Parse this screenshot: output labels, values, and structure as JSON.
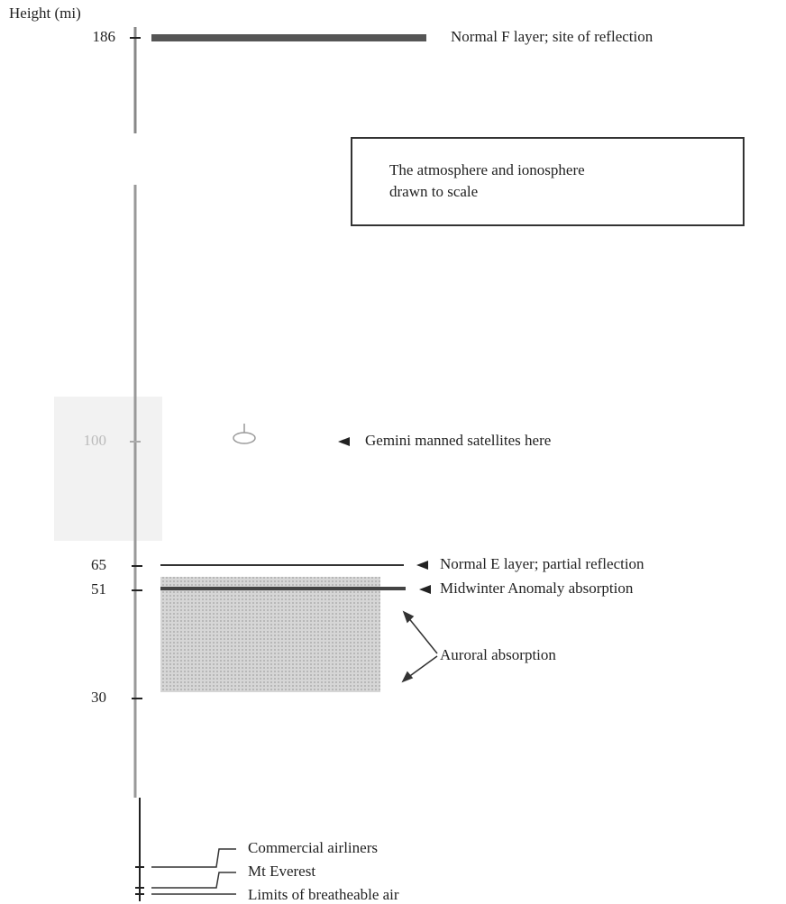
{
  "axis": {
    "title": "Height (mi)",
    "ticks": [
      "186",
      "100",
      "65",
      "51",
      "30"
    ]
  },
  "box": {
    "lines": [
      "The atmosphere and ionosphere",
      "drawn to scale"
    ]
  },
  "labels": {
    "f_layer": "Normal F layer; site of reflection",
    "gemini": "Gemini manned satellites here",
    "e_layer": "Normal E layer; partial reflection",
    "midwinter": "Midwinter Anomaly absorption",
    "auroral": "Auroral absorption",
    "airliners": "Commercial airliners",
    "everest": "Mt Everest",
    "breathable": "Limits of breatheable air"
  }
}
